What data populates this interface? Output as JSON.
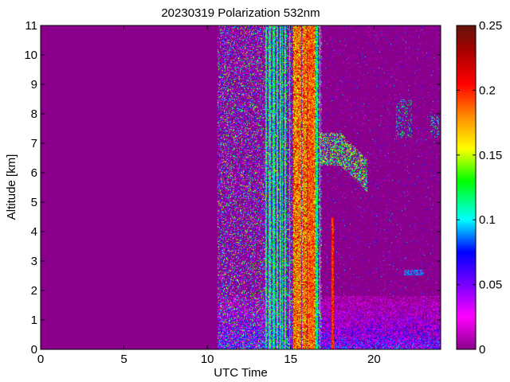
{
  "chart_data": {
    "type": "heatmap",
    "title": "20230319 Polarization 532nm",
    "xlabel": "UTC Time",
    "ylabel": "Altitude [km]",
    "xlim": [
      0,
      24
    ],
    "ylim": [
      0,
      11
    ],
    "x_ticks": [
      0,
      5,
      10,
      15,
      20
    ],
    "y_ticks": [
      0,
      1,
      2,
      3,
      4,
      5,
      6,
      7,
      8,
      9,
      10,
      11
    ],
    "colorbar": {
      "range": [
        0,
        0.25
      ],
      "ticks": [
        0,
        0.05,
        0.1,
        0.15,
        0.2,
        0.25
      ],
      "tick_labels": [
        "0",
        "0.05",
        "0.1",
        "0.15",
        "0.2",
        "0.25"
      ],
      "colormap": "purple-magenta-blue-cyan-green-yellow-orange-red-brown"
    },
    "background_value": 0,
    "background_color": "#8b008b",
    "data_start_hour": 10.6,
    "features": [
      {
        "kind": "noise_column",
        "x_range": [
          10.6,
          16.9
        ],
        "alt_range": [
          0,
          11
        ],
        "typical_value": 0.08
      },
      {
        "kind": "high_stripes",
        "x_range": [
          15.0,
          16.5
        ],
        "alt_range": [
          0,
          11
        ],
        "typical_value": 0.2
      },
      {
        "kind": "boundary_layer",
        "x_range": [
          10.6,
          24
        ],
        "alt_range": [
          0,
          1.8
        ],
        "typical_value": 0.05
      },
      {
        "kind": "cloud_layer",
        "x_range": [
          16.8,
          19.5
        ],
        "alt_range": [
          5.5,
          7.2
        ],
        "typical_value": 0.15
      },
      {
        "kind": "cloud_layer",
        "x_range": [
          21.3,
          22.3
        ],
        "alt_range": [
          7.2,
          8.5
        ],
        "typical_value": 0.12
      },
      {
        "kind": "cloud_layer",
        "x_range": [
          23.4,
          23.9
        ],
        "alt_range": [
          7.2,
          8.0
        ],
        "typical_value": 0.12
      },
      {
        "kind": "aerosol_layer",
        "x_range": [
          21.8,
          23.0
        ],
        "alt_range": [
          2.5,
          2.7
        ],
        "typical_value": 0.1
      },
      {
        "kind": "vertical_streak",
        "x_range": [
          17.4,
          17.6
        ],
        "alt_range": [
          0,
          4.5
        ],
        "typical_value": 0.2
      }
    ]
  }
}
